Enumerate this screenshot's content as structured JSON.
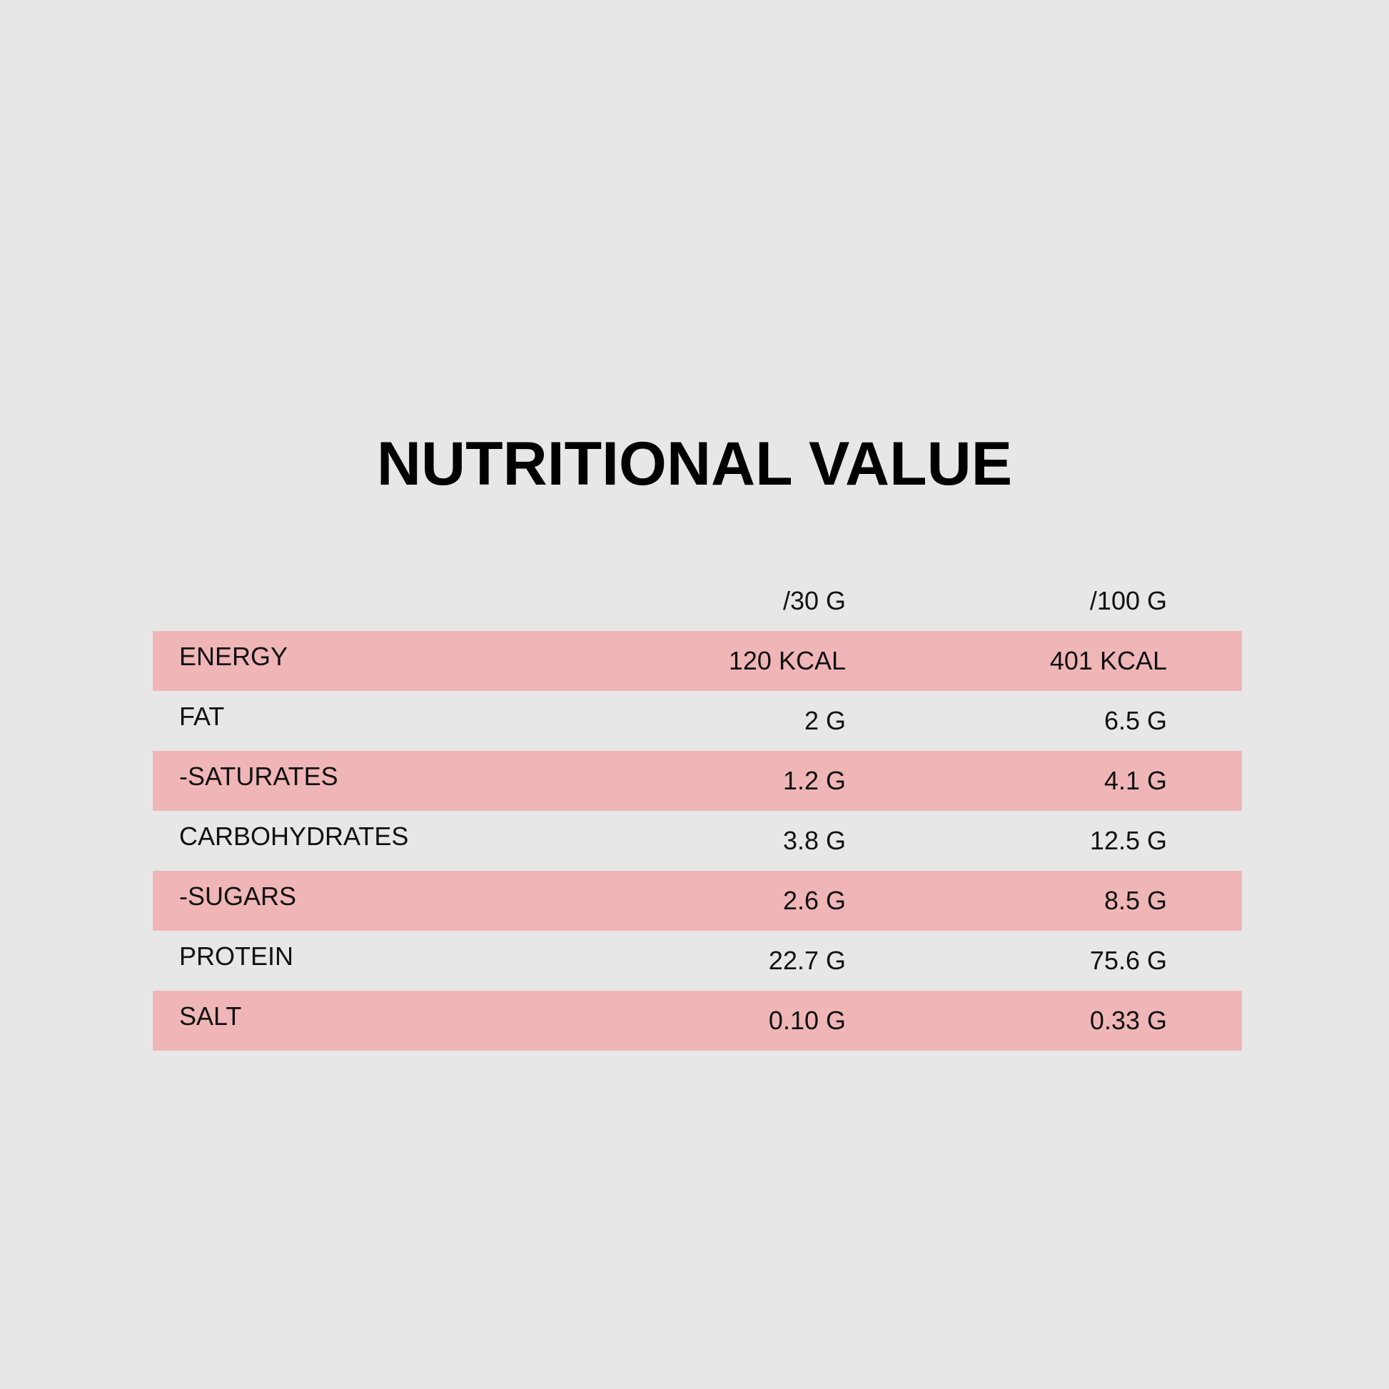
{
  "title": "NUTRITIONAL VALUE",
  "columns": {
    "per_30": "/30 G",
    "per_100": "/100 G"
  },
  "rows": [
    {
      "name": "ENERGY",
      "per_30": "120 KCAL",
      "per_100": "401 KCAL"
    },
    {
      "name": "FAT",
      "per_30": "2 G",
      "per_100": "6.5 G"
    },
    {
      "name": "-SATURATES",
      "per_30": "1.2 G",
      "per_100": "4.1 G"
    },
    {
      "name": "CARBOHYDRATES",
      "per_30": "3.8 G",
      "per_100": "12.5 G"
    },
    {
      "name": "-SUGARS",
      "per_30": "2.6 G",
      "per_100": "8.5 G"
    },
    {
      "name": "PROTEIN",
      "per_30": "22.7 G",
      "per_100": "75.6 G"
    },
    {
      "name": "SALT",
      "per_30": "0.10 G",
      "per_100": "0.33 G"
    }
  ],
  "colors": {
    "background": "#e7e7e7",
    "row_highlight": "#f0b6b7",
    "text": "#111111"
  }
}
